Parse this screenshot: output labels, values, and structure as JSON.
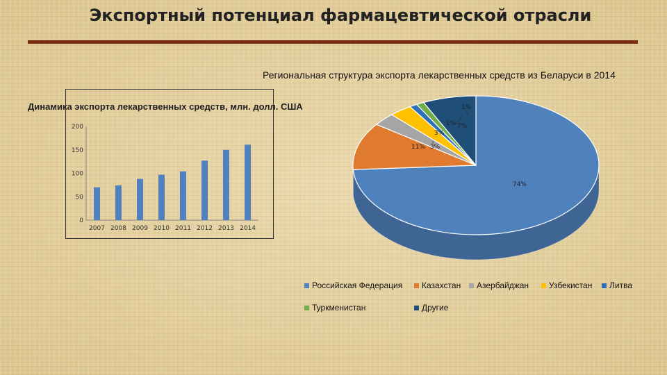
{
  "page": {
    "title": "Экспортный потенциал фармацевтической отрасли"
  },
  "chart_data": [
    {
      "type": "bar",
      "title": "Динамика экспорта лекарственных средств, млн. долл. США",
      "categories": [
        "2007",
        "2008",
        "2009",
        "2010",
        "2011",
        "2012",
        "2013",
        "2014"
      ],
      "values": [
        70,
        74,
        88,
        97,
        104,
        127,
        150,
        161
      ],
      "ylim": [
        0,
        200
      ],
      "yticks": [
        "0",
        "50",
        "100",
        "150",
        "200"
      ],
      "grid": false,
      "colors": {
        "bar": "#4f81bd"
      }
    },
    {
      "type": "pie",
      "title": "Региональная структура экспорта лекарственных средств из Беларуси в 2014",
      "slices": [
        {
          "label": "Российская Федерация",
          "value": 74,
          "text": "74%",
          "color": "#4f81bd"
        },
        {
          "label": "Казахстан",
          "value": 11,
          "text": "11%",
          "color": "#e07a2e"
        },
        {
          "label": "Азербайджан",
          "value": 3,
          "text": "3%",
          "color": "#a5a5a5"
        },
        {
          "label": "Узбекистан",
          "value": 3,
          "text": "3%",
          "color": "#ffc000"
        },
        {
          "label": "Литва",
          "value": 1,
          "text": "1%",
          "color": "#2f6fb5"
        },
        {
          "label": "Туркменистан",
          "value": 1,
          "text": "1%",
          "color": "#70ad47"
        },
        {
          "label": "Другие",
          "value": 7,
          "text": "7%",
          "color": "#1f4e79"
        }
      ],
      "legend": "bottom"
    }
  ]
}
